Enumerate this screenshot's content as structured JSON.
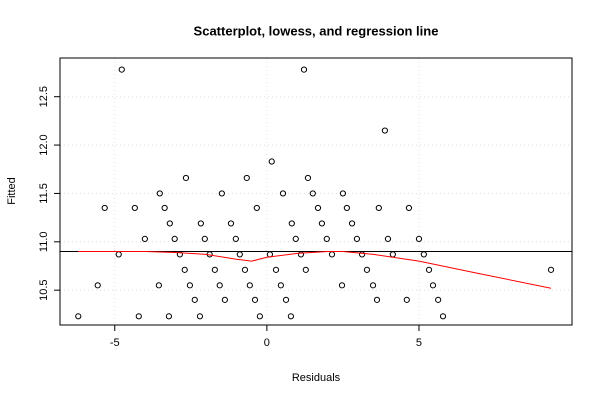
{
  "chart_data": {
    "type": "scatter",
    "title": "Scatterplot, lowess, and regression line",
    "x_label": "Residuals",
    "y_label": "Fitted",
    "xlim": [
      -6.8,
      10.03
    ],
    "ylim": [
      10.14,
      12.9
    ],
    "xticks": [
      -5,
      0,
      5
    ],
    "yticks": [
      {
        "value": 10.5,
        "label": "10.5"
      },
      {
        "value": 11.0,
        "label": "11.0"
      },
      {
        "value": 11.5,
        "label": "11.5"
      },
      {
        "value": 12.0,
        "label": "12.0"
      },
      {
        "value": 12.5,
        "label": "12.5"
      }
    ],
    "grid": true,
    "point_color": "#000000",
    "points": {
      "x": [
        -6.2,
        -5.56,
        -5.33,
        -4.87,
        -4.77,
        -4.34,
        -4.21,
        -4.01,
        -3.55,
        -3.52,
        -3.36,
        -3.22,
        -3.19,
        -3.03,
        -2.86,
        -2.7,
        -2.66,
        -2.53,
        -2.37,
        -2.2,
        -2.17,
        -2.04,
        -1.88,
        -1.71,
        -1.55,
        -1.48,
        -1.38,
        -1.18,
        -1.02,
        -0.89,
        -0.72,
        -0.66,
        -0.56,
        -0.39,
        -0.33,
        -0.23,
        0.16,
        0.1,
        0.3,
        0.46,
        0.53,
        0.63,
        0.79,
        0.82,
        0.95,
        1.12,
        1.22,
        1.28,
        1.35,
        1.51,
        1.68,
        1.81,
        1.97,
        2.14,
        2.47,
        2.5,
        2.63,
        2.8,
        2.96,
        3.13,
        3.29,
        3.49,
        3.62,
        3.68,
        3.88,
        3.98,
        4.14,
        4.6,
        4.67,
        5.0,
        5.16,
        5.33,
        5.46,
        5.63,
        5.79,
        9.34
      ],
      "y": [
        10.23,
        10.55,
        11.35,
        10.87,
        12.78,
        11.35,
        10.23,
        11.03,
        10.55,
        11.5,
        11.35,
        10.23,
        11.19,
        11.03,
        10.87,
        10.71,
        11.66,
        10.55,
        10.4,
        10.23,
        11.19,
        11.03,
        10.87,
        10.71,
        10.55,
        11.5,
        10.4,
        11.19,
        11.03,
        10.87,
        10.71,
        11.66,
        10.55,
        10.4,
        11.35,
        10.23,
        11.83,
        10.87,
        10.71,
        10.55,
        11.5,
        10.4,
        10.23,
        11.19,
        11.03,
        10.87,
        12.78,
        10.71,
        11.66,
        11.5,
        11.35,
        11.19,
        11.03,
        10.87,
        10.55,
        11.5,
        11.35,
        11.19,
        11.03,
        10.87,
        10.71,
        10.55,
        10.4,
        11.35,
        12.15,
        11.03,
        10.87,
        10.4,
        11.35,
        11.03,
        10.87,
        10.71,
        10.55,
        10.4,
        10.23,
        10.71
      ]
    },
    "lines": [
      {
        "color": "#000000",
        "x": [
          -6.8,
          10.03
        ],
        "y": [
          10.9,
          10.9
        ]
      },
      {
        "color": "#ff0000",
        "x": [
          -6.2,
          -4,
          -3,
          -2,
          -1,
          -0.5,
          0,
          1,
          2,
          2.5,
          3.5,
          5,
          7,
          9.34
        ],
        "y": [
          10.9,
          10.9,
          10.89,
          10.87,
          10.82,
          10.8,
          10.84,
          10.88,
          10.9,
          10.9,
          10.87,
          10.8,
          10.67,
          10.52
        ]
      }
    ]
  }
}
